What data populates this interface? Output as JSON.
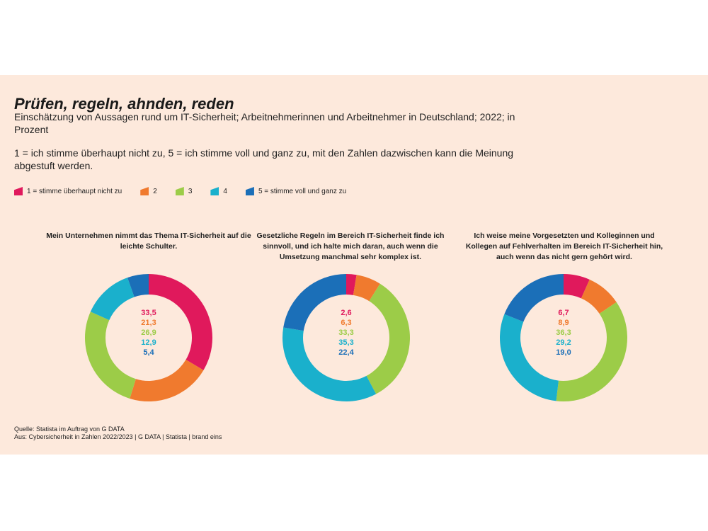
{
  "title": "Prüfen, regeln, ahnden, reden",
  "subtitle": "Einschätzung von Aussagen rund um IT-Sicherheit; Arbeitnehmerinnen und Arbeitnehmer in Deutschland; 2022; in Prozent",
  "scale_note": "1 = ich stimme überhaupt nicht zu, 5 = ich stimme voll und ganz zu, mit den Zahlen dazwischen kann die Meinung abgestuft werden.",
  "legend": [
    {
      "label": "1 = stimme überhaupt nicht zu",
      "color": "#e0195c"
    },
    {
      "label": "2",
      "color": "#f07a2e"
    },
    {
      "label": "3",
      "color": "#9ccc48"
    },
    {
      "label": "4",
      "color": "#1ab0cc"
    },
    {
      "label": "5 = stimme voll und ganz zu",
      "color": "#1b6fb8"
    }
  ],
  "chart_data": [
    {
      "type": "pie",
      "title": "Mein Unternehmen nimmt das Thema IT-Sicherheit auf die leichte Schulter.",
      "categories": [
        "1",
        "2",
        "3",
        "4",
        "5"
      ],
      "values": [
        33.5,
        21.3,
        26.9,
        12.9,
        5.4
      ],
      "value_labels": [
        "33,5",
        "21,3",
        "26,9",
        "12,9",
        "5,4"
      ],
      "colors": [
        "#e0195c",
        "#f07a2e",
        "#9ccc48",
        "#1ab0cc",
        "#1b6fb8"
      ]
    },
    {
      "type": "pie",
      "title": "Gesetzliche Regeln im Bereich IT-Sicherheit finde ich sinnvoll, und ich halte mich daran, auch wenn die Umsetzung manchmal sehr komplex ist.",
      "categories": [
        "1",
        "2",
        "3",
        "4",
        "5"
      ],
      "values": [
        2.6,
        6.3,
        33.3,
        35.3,
        22.4
      ],
      "value_labels": [
        "2,6",
        "6,3",
        "33,3",
        "35,3",
        "22,4"
      ],
      "colors": [
        "#e0195c",
        "#f07a2e",
        "#9ccc48",
        "#1ab0cc",
        "#1b6fb8"
      ]
    },
    {
      "type": "pie",
      "title": "Ich weise meine Vorgesetzten und Kolleginnen und Kollegen auf Fehlverhalten im Bereich IT-Sicherheit hin, auch wenn das nicht gern gehört wird.",
      "categories": [
        "1",
        "2",
        "3",
        "4",
        "5"
      ],
      "values": [
        6.7,
        8.9,
        36.3,
        29.2,
        19.0
      ],
      "value_labels": [
        "6,7",
        "8,9",
        "36,3",
        "29,2",
        "19,0"
      ],
      "colors": [
        "#e0195c",
        "#f07a2e",
        "#9ccc48",
        "#1ab0cc",
        "#1b6fb8"
      ]
    }
  ],
  "source": {
    "line1": "Quelle: Statista im Auftrag von G DATA",
    "line2": "Aus: Cybersicherheit in Zahlen 2022/2023 | G DATA | Statista | brand eins"
  }
}
